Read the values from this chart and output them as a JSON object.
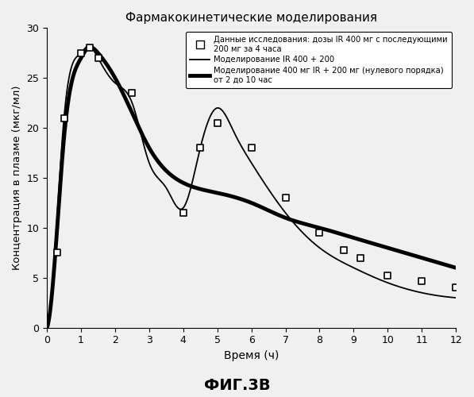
{
  "title": "Фармакокинетические моделирования",
  "xlabel": "Время (ч)",
  "ylabel": "Концентрация в плазме (мкг/мл)",
  "caption": "ФИГ.3В",
  "xlim": [
    0,
    12
  ],
  "ylim": [
    0,
    30
  ],
  "xticks": [
    0,
    1,
    2,
    3,
    4,
    5,
    6,
    7,
    8,
    9,
    10,
    11,
    12
  ],
  "yticks": [
    0,
    5,
    10,
    15,
    20,
    25,
    30
  ],
  "scatter_x": [
    0.3,
    0.5,
    1.0,
    1.25,
    1.5,
    2.5,
    4.0,
    4.5,
    5.0,
    6.0,
    7.0,
    8.0,
    8.7,
    9.2,
    10.0,
    11.0,
    12.0
  ],
  "scatter_y": [
    7.5,
    21.0,
    27.5,
    28.0,
    27.0,
    23.5,
    11.5,
    18.0,
    20.5,
    18.0,
    13.0,
    9.5,
    7.8,
    7.0,
    5.2,
    4.7,
    4.0
  ],
  "thin_knots_x": [
    0,
    0.15,
    0.5,
    1.0,
    1.2,
    1.5,
    2.0,
    2.5,
    3.0,
    3.5,
    4.0,
    4.5,
    5.0,
    5.5,
    6.0,
    7.0,
    8.0,
    9.0,
    10.0,
    11.0,
    12.0
  ],
  "thin_knots_y": [
    0,
    4.0,
    21.0,
    27.5,
    28.2,
    27.0,
    24.5,
    22.5,
    16.5,
    14.0,
    12.0,
    18.0,
    22.0,
    19.5,
    16.5,
    11.5,
    8.0,
    6.0,
    4.5,
    3.5,
    3.0
  ],
  "thick_knots_x": [
    0,
    0.15,
    0.5,
    1.0,
    1.2,
    1.5,
    2.0,
    2.5,
    3.0,
    4.0,
    5.0,
    6.0,
    7.0,
    8.0,
    9.0,
    10.0,
    11.0,
    12.0
  ],
  "thick_knots_y": [
    0,
    3.5,
    19.0,
    27.0,
    28.0,
    27.5,
    25.0,
    21.5,
    18.0,
    14.5,
    13.5,
    12.5,
    11.0,
    10.0,
    9.0,
    8.0,
    7.0,
    6.0
  ],
  "legend_labels": [
    "Данные исследования: дозы IR 400 мг с последующими\n200 мг за 4 часа",
    "Моделирование IR 400 + 200",
    "Моделирование 400 мг IR + 200 мг (нулевого порядка)\nот 2 до 10 час"
  ],
  "bg_color": "#f0f0f0",
  "line_color_thin": "#000000",
  "line_color_thick": "#000000",
  "thin_lw": 1.3,
  "thick_lw": 3.5
}
